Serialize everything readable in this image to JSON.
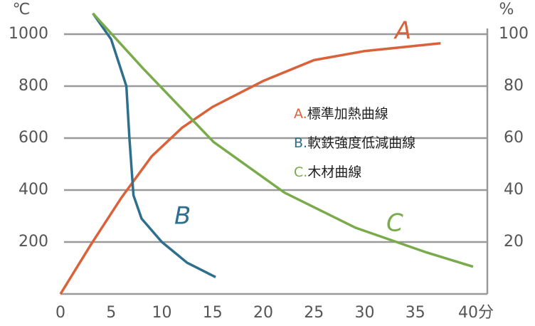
{
  "chart_data": {
    "type": "line",
    "y_unit": "℃",
    "y2_unit": "%",
    "xlim": [
      0,
      40
    ],
    "xticks": [
      0,
      5,
      10,
      15,
      20,
      25,
      30,
      35,
      {
        "value": 40,
        "label": "40分"
      }
    ],
    "ylim": [
      0,
      1100
    ],
    "yticks": [
      200,
      400,
      600,
      800,
      1000
    ],
    "y2lim": [
      0,
      110
    ],
    "y2ticks": [
      20,
      40,
      60,
      80,
      100
    ],
    "grid": true,
    "series": [
      {
        "label": "A",
        "legend_prefix": "A.",
        "name": "標準加熱曲線",
        "color": "#d9623a",
        "x": [
          0,
          3,
          6,
          9,
          12,
          15,
          20,
          25,
          30,
          37.5
        ],
        "values": [
          0,
          190,
          370,
          530,
          640,
          720,
          820,
          900,
          935,
          965
        ]
      },
      {
        "label": "B",
        "legend_prefix": "B.",
        "name": "軟鉄強度低減曲線",
        "color": "#2e6f8e",
        "x": [
          3.2,
          5,
          6.5,
          6.8,
          7.2,
          8,
          10,
          12.5,
          15.3
        ],
        "values": [
          1080,
          980,
          800,
          600,
          380,
          290,
          200,
          120,
          65
        ]
      },
      {
        "label": "C",
        "legend_prefix": "C.",
        "name": "木材曲線",
        "color": "#7aab4a",
        "x": [
          3.2,
          8.1,
          15.1,
          22.1,
          29.1,
          36.1,
          40.7
        ],
        "values": [
          1080,
          870,
          585,
          390,
          255,
          160,
          105
        ]
      }
    ]
  }
}
